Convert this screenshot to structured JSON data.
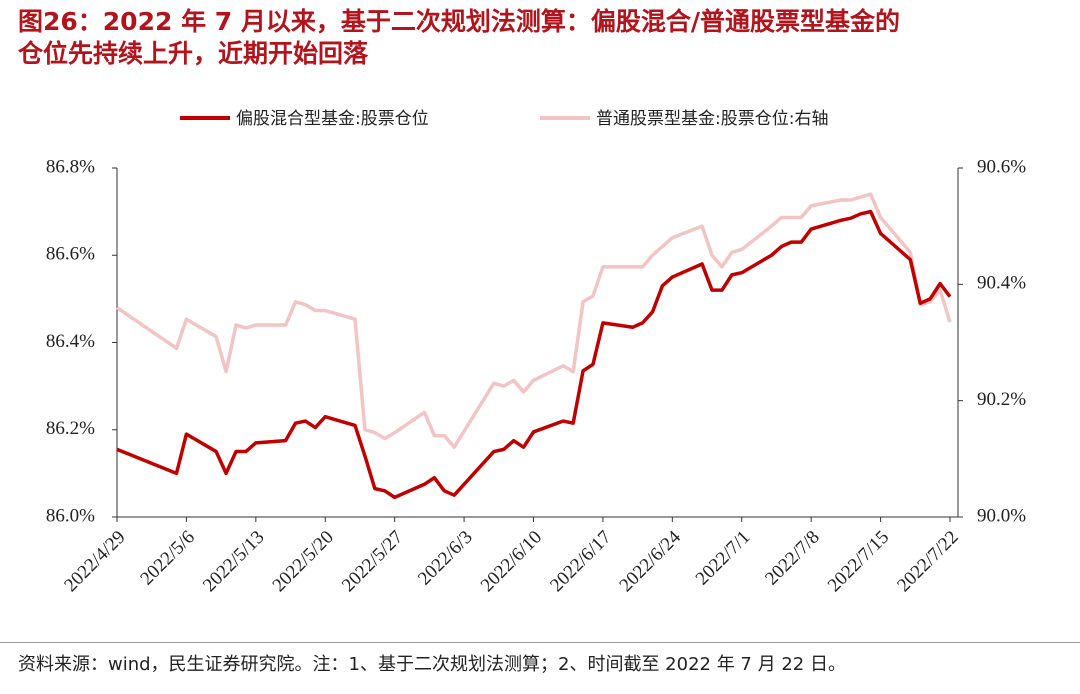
{
  "chart_data": {
    "type": "line",
    "title": [
      "图26：2022 年 7 月以来，基于二次规划法测算：偏股混合/普通股票型基金的",
      "仓位先持续上升，近期开始回落"
    ],
    "source": "资料来源：wind，民生证券研究院。注：1、基于二次规划法测算；2、时间截至 2022 年 7 月 22 日。",
    "x": [
      "2022/4/29",
      "2022/5/5",
      "2022/5/6",
      "2022/5/9",
      "2022/5/10",
      "2022/5/11",
      "2022/5/12",
      "2022/5/13",
      "2022/5/16",
      "2022/5/17",
      "2022/5/18",
      "2022/5/19",
      "2022/5/20",
      "2022/5/23",
      "2022/5/24",
      "2022/5/25",
      "2022/5/26",
      "2022/5/27",
      "2022/5/30",
      "2022/5/31",
      "2022/6/1",
      "2022/6/2",
      "2022/6/6",
      "2022/6/7",
      "2022/6/8",
      "2022/6/9",
      "2022/6/10",
      "2022/6/13",
      "2022/6/14",
      "2022/6/15",
      "2022/6/16",
      "2022/6/17",
      "2022/6/20",
      "2022/6/21",
      "2022/6/22",
      "2022/6/23",
      "2022/6/24",
      "2022/6/27",
      "2022/6/28",
      "2022/6/29",
      "2022/6/30",
      "2022/7/1",
      "2022/7/4",
      "2022/7/5",
      "2022/7/6",
      "2022/7/7",
      "2022/7/8",
      "2022/7/11",
      "2022/7/12",
      "2022/7/13",
      "2022/7/14",
      "2022/7/15",
      "2022/7/18",
      "2022/7/19",
      "2022/7/20",
      "2022/7/21",
      "2022/7/22"
    ],
    "xlim": [
      "2022/4/29",
      "2022/7/22"
    ],
    "xticks": [
      "2022/4/29",
      "2022/5/6",
      "2022/5/13",
      "2022/5/20",
      "2022/5/27",
      "2022/6/3",
      "2022/6/10",
      "2022/6/17",
      "2022/6/24",
      "2022/7/1",
      "2022/7/8",
      "2022/7/15",
      "2022/7/22"
    ],
    "ylim": [
      86.0,
      86.8
    ],
    "yticks": [
      {
        "value": 86.0,
        "label": "86.0%"
      },
      {
        "value": 86.2,
        "label": "86.2%"
      },
      {
        "value": 86.4,
        "label": "86.4%"
      },
      {
        "value": 86.6,
        "label": "86.6%"
      },
      {
        "value": 86.8,
        "label": "86.8%"
      }
    ],
    "y2lim": [
      90.0,
      90.6
    ],
    "y2ticks": [
      {
        "value": 90.0,
        "label": "90.0%"
      },
      {
        "value": 90.2,
        "label": "90.2%"
      },
      {
        "value": 90.4,
        "label": "90.4%"
      },
      {
        "value": 90.6,
        "label": "90.6%"
      }
    ],
    "series": [
      {
        "name": "偏股混合型基金:股票仓位",
        "color": "#c00000",
        "values": [
          86.155,
          86.1,
          86.19,
          86.15,
          86.1,
          86.15,
          86.15,
          86.17,
          86.175,
          86.215,
          86.22,
          86.205,
          86.23,
          86.21,
          86.14,
          86.065,
          86.06,
          86.045,
          86.075,
          86.09,
          86.06,
          86.05,
          86.15,
          86.155,
          86.175,
          86.16,
          86.195,
          86.22,
          86.215,
          86.335,
          86.35,
          86.445,
          86.435,
          86.445,
          86.47,
          86.53,
          86.55,
          86.58,
          86.52,
          86.52,
          86.555,
          86.56,
          86.6,
          86.62,
          86.63,
          86.63,
          86.66,
          86.68,
          86.685,
          86.695,
          86.7,
          86.65,
          86.59,
          86.49,
          86.5,
          86.535,
          86.505
        ]
      },
      {
        "name": "普通股票型基金:股票仓位:右轴",
        "color": "#f2c4c4",
        "axis": "y2",
        "values": [
          90.36,
          90.29,
          90.34,
          90.31,
          90.25,
          90.33,
          90.325,
          90.33,
          90.33,
          90.37,
          90.365,
          90.355,
          90.355,
          90.34,
          90.15,
          90.145,
          90.135,
          90.145,
          90.18,
          90.14,
          90.14,
          90.12,
          90.23,
          90.225,
          90.235,
          90.215,
          90.235,
          90.26,
          90.25,
          90.37,
          90.38,
          90.43,
          90.43,
          90.43,
          90.45,
          90.465,
          90.48,
          90.5,
          90.45,
          90.43,
          90.455,
          90.46,
          90.5,
          90.515,
          90.515,
          90.515,
          90.535,
          90.545,
          90.545,
          90.55,
          90.555,
          90.515,
          90.455,
          90.365,
          90.37,
          90.39,
          90.335
        ]
      }
    ]
  }
}
